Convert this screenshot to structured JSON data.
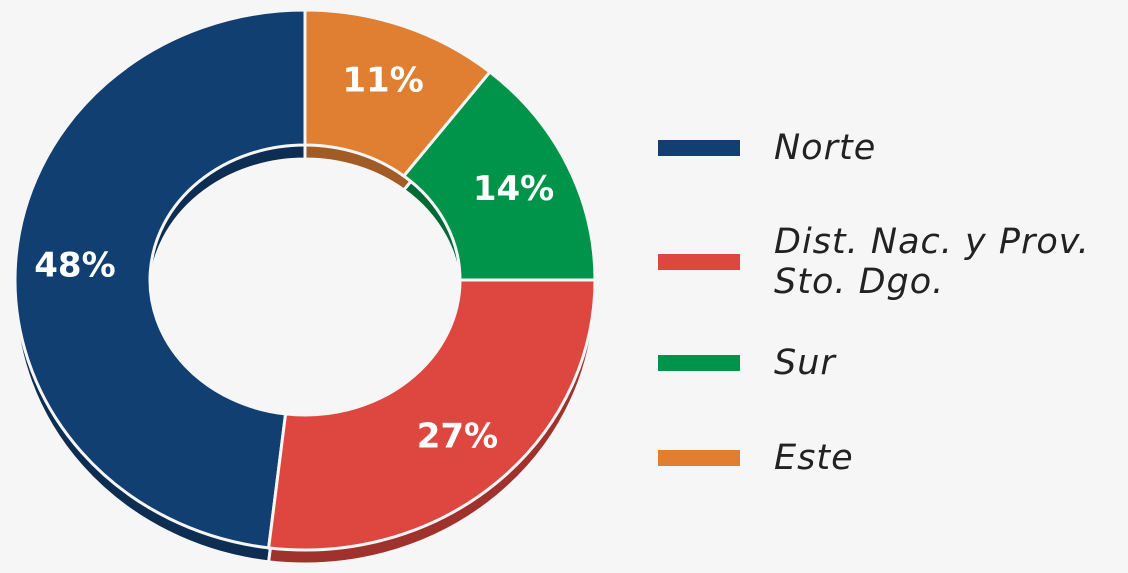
{
  "chart_data": {
    "type": "pie",
    "donut": true,
    "categories": [
      "Norte",
      "Dist. Nac. y Prov. Sto. Dgo.",
      "Sur",
      "Este"
    ],
    "values": [
      48,
      27,
      14,
      11
    ],
    "value_labels": [
      "48%",
      "27%",
      "14%",
      "11%"
    ],
    "colors": [
      "#123f72",
      "#de4640",
      "#00934a",
      "#e07e32"
    ]
  }
}
